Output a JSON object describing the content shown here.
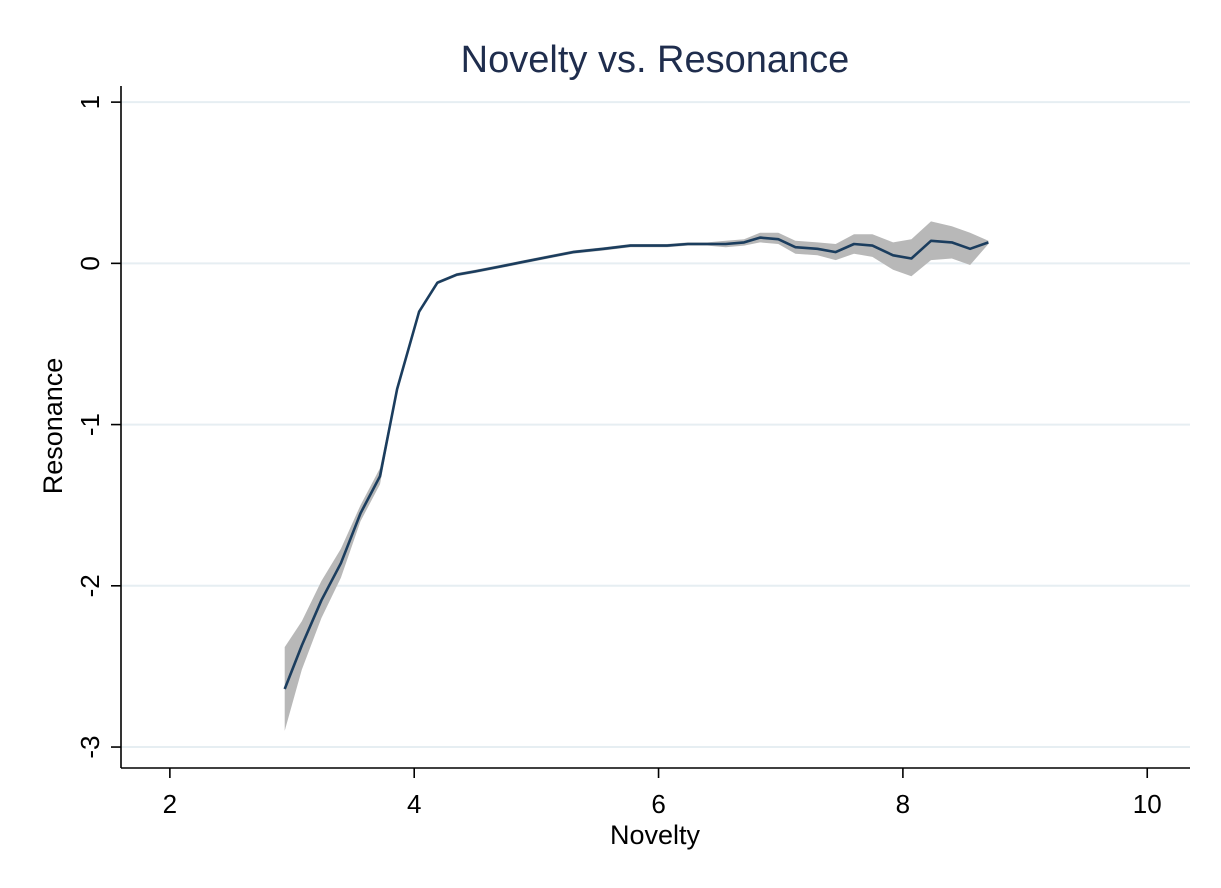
{
  "chart_data": {
    "type": "line",
    "title": "Novelty vs. Resonance",
    "xlabel": "Novelty",
    "ylabel": "Resonance",
    "xlim": [
      1.6,
      10.35
    ],
    "ylim": [
      -3.13,
      1.1
    ],
    "xticks": [
      2,
      4,
      6,
      8,
      10
    ],
    "xtick_labels": [
      "2",
      "4",
      "6",
      "8",
      "10"
    ],
    "yticks": [
      1,
      0,
      -1,
      -2,
      -3
    ],
    "ytick_labels": [
      "1",
      "0",
      "-1",
      "-2",
      "-3"
    ],
    "grid": "horizontal",
    "colors": {
      "line": "#1b3d5e",
      "band": "#b8b8b8",
      "grid": "#e6eef2",
      "title": "#1f2d4d"
    },
    "series": [
      {
        "x": [
          2.94,
          3.08,
          3.24,
          3.4,
          3.56,
          3.72,
          3.86,
          4.04,
          4.19,
          4.35,
          4.5,
          4.7,
          4.9,
          5.1,
          5.3,
          5.55,
          5.77,
          5.92,
          6.07,
          6.24,
          6.4,
          6.55,
          6.7,
          6.83,
          6.98,
          7.12,
          7.3,
          7.45,
          7.6,
          7.75,
          7.92,
          8.07,
          8.23,
          8.4,
          8.55,
          8.7
        ],
        "y": [
          -2.64,
          -2.37,
          -2.09,
          -1.86,
          -1.55,
          -1.32,
          -0.78,
          -0.3,
          -0.12,
          -0.07,
          -0.05,
          -0.02,
          0.01,
          0.04,
          0.07,
          0.09,
          0.11,
          0.11,
          0.11,
          0.12,
          0.12,
          0.12,
          0.13,
          0.16,
          0.15,
          0.1,
          0.09,
          0.07,
          0.12,
          0.11,
          0.05,
          0.03,
          0.14,
          0.13,
          0.09,
          0.13
        ],
        "lower": [
          -2.9,
          -2.52,
          -2.2,
          -1.95,
          -1.6,
          -1.37,
          -0.8,
          -0.31,
          -0.13,
          -0.08,
          -0.06,
          -0.03,
          0.0,
          0.03,
          0.06,
          0.08,
          0.1,
          0.1,
          0.1,
          0.11,
          0.11,
          0.1,
          0.11,
          0.13,
          0.12,
          0.06,
          0.05,
          0.02,
          0.06,
          0.04,
          -0.04,
          -0.08,
          0.02,
          0.03,
          -0.01,
          0.12
        ],
        "upper": [
          -2.38,
          -2.22,
          -1.97,
          -1.77,
          -1.5,
          -1.27,
          -0.76,
          -0.29,
          -0.11,
          -0.06,
          -0.04,
          -0.01,
          0.02,
          0.05,
          0.08,
          0.1,
          0.12,
          0.12,
          0.12,
          0.13,
          0.13,
          0.14,
          0.15,
          0.19,
          0.19,
          0.14,
          0.13,
          0.12,
          0.18,
          0.18,
          0.13,
          0.15,
          0.26,
          0.23,
          0.19,
          0.14
        ]
      }
    ]
  }
}
